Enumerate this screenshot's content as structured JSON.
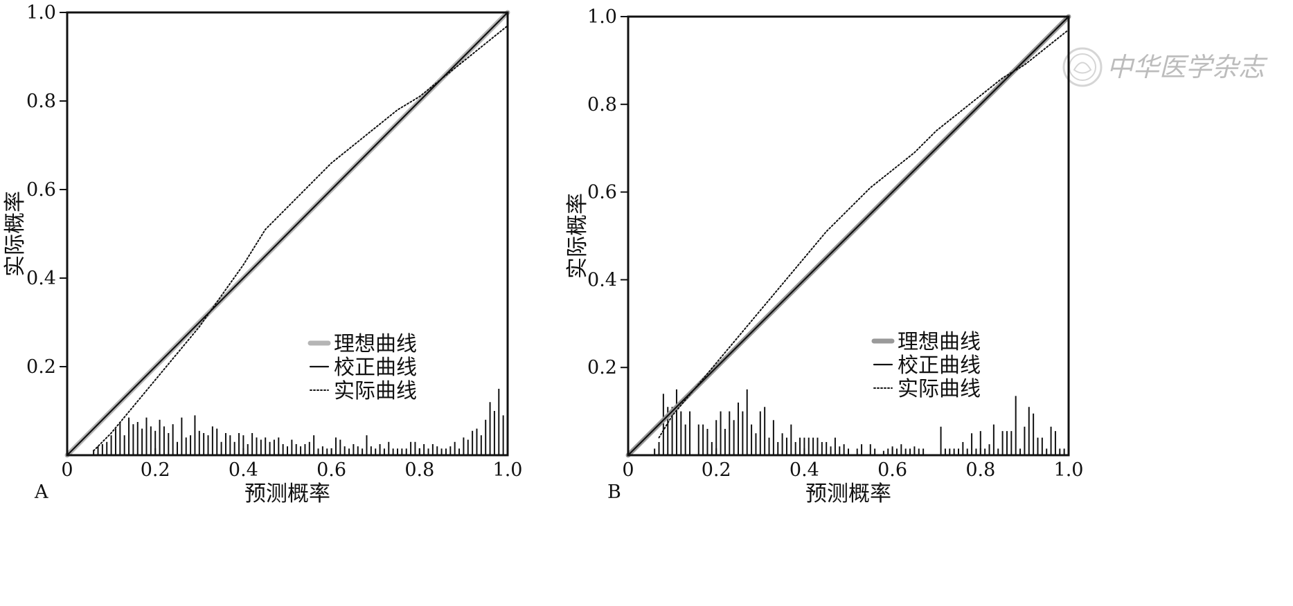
{
  "watermark": {
    "text": "中华医学杂志",
    "icon": "journal-seal-icon"
  },
  "charts": [
    {
      "type": "line",
      "panel_label": "A",
      "xlabel": "预测概率",
      "ylabel": "实际概率",
      "xlim": [
        0,
        1
      ],
      "ylim": [
        0,
        1
      ],
      "xticks": [
        "0",
        "0.2",
        "0.4",
        "0.6",
        "0.8",
        "1.0"
      ],
      "yticks": [
        "0.2",
        "0.4",
        "0.6",
        "0.8",
        "1.0"
      ],
      "legend": {
        "placement": "lower-right",
        "items": [
          "理想曲线",
          "校正曲线",
          "实际曲线"
        ]
      },
      "colors": {
        "ideal": "#b5b5b5",
        "corrected": "#111111",
        "apparent": "#111111"
      },
      "series": [
        {
          "name": "理想曲线",
          "style": "thick-gray",
          "x": [
            0,
            1
          ],
          "y": [
            0,
            1
          ]
        },
        {
          "name": "校正曲线",
          "style": "solid-black",
          "x": [
            0,
            1
          ],
          "y": [
            0,
            1
          ]
        },
        {
          "name": "实际曲线",
          "style": "dotted-black",
          "x": [
            0.06,
            0.1,
            0.15,
            0.2,
            0.25,
            0.3,
            0.35,
            0.4,
            0.45,
            0.5,
            0.55,
            0.6,
            0.65,
            0.7,
            0.75,
            0.8,
            0.85,
            0.9,
            0.95,
            1.0
          ],
          "y": [
            0.01,
            0.05,
            0.11,
            0.17,
            0.23,
            0.29,
            0.36,
            0.43,
            0.51,
            0.56,
            0.61,
            0.66,
            0.7,
            0.74,
            0.78,
            0.81,
            0.85,
            0.89,
            0.93,
            0.97
          ]
        }
      ],
      "histogram": {
        "x": [
          0.06,
          0.07,
          0.08,
          0.09,
          0.1,
          0.11,
          0.12,
          0.13,
          0.14,
          0.15,
          0.16,
          0.17,
          0.18,
          0.19,
          0.2,
          0.21,
          0.22,
          0.23,
          0.24,
          0.25,
          0.26,
          0.27,
          0.28,
          0.29,
          0.3,
          0.31,
          0.32,
          0.33,
          0.34,
          0.35,
          0.36,
          0.37,
          0.38,
          0.39,
          0.4,
          0.41,
          0.42,
          0.43,
          0.44,
          0.45,
          0.46,
          0.47,
          0.48,
          0.49,
          0.5,
          0.51,
          0.52,
          0.53,
          0.54,
          0.55,
          0.56,
          0.57,
          0.58,
          0.59,
          0.6,
          0.61,
          0.62,
          0.63,
          0.64,
          0.65,
          0.66,
          0.67,
          0.68,
          0.69,
          0.7,
          0.71,
          0.72,
          0.73,
          0.74,
          0.75,
          0.76,
          0.77,
          0.78,
          0.79,
          0.8,
          0.81,
          0.82,
          0.83,
          0.84,
          0.85,
          0.86,
          0.87,
          0.88,
          0.89,
          0.9,
          0.91,
          0.92,
          0.93,
          0.94,
          0.95,
          0.96,
          0.97,
          0.98,
          0.99
        ],
        "y": [
          0.012,
          0.02,
          0.025,
          0.03,
          0.045,
          0.06,
          0.075,
          0.045,
          0.085,
          0.07,
          0.075,
          0.06,
          0.085,
          0.065,
          0.055,
          0.08,
          0.065,
          0.05,
          0.07,
          0.03,
          0.085,
          0.04,
          0.045,
          0.09,
          0.055,
          0.05,
          0.045,
          0.065,
          0.06,
          0.03,
          0.05,
          0.045,
          0.03,
          0.05,
          0.045,
          0.025,
          0.05,
          0.04,
          0.035,
          0.04,
          0.03,
          0.035,
          0.04,
          0.025,
          0.02,
          0.035,
          0.025,
          0.02,
          0.025,
          0.03,
          0.045,
          0.015,
          0.02,
          0.015,
          0.015,
          0.04,
          0.035,
          0.02,
          0.015,
          0.025,
          0.02,
          0.015,
          0.045,
          0.02,
          0.015,
          0.025,
          0.015,
          0.03,
          0.015,
          0.015,
          0.015,
          0.015,
          0.03,
          0.03,
          0.015,
          0.025,
          0.015,
          0.025,
          0.02,
          0.015,
          0.015,
          0.02,
          0.03,
          0.015,
          0.04,
          0.035,
          0.055,
          0.06,
          0.045,
          0.08,
          0.12,
          0.1,
          0.15,
          0.09
        ]
      }
    },
    {
      "type": "line",
      "panel_label": "B",
      "xlabel": "预测概率",
      "ylabel": "实际概率",
      "xlim": [
        0,
        1
      ],
      "ylim": [
        0,
        1
      ],
      "xticks": [
        "0",
        "0.2",
        "0.4",
        "0.6",
        "0.8",
        "1.0"
      ],
      "yticks": [
        "0.2",
        "0.4",
        "0.6",
        "0.8",
        "1.0"
      ],
      "legend": {
        "placement": "lower-right",
        "items": [
          "理想曲线",
          "校正曲线",
          "实际曲线"
        ]
      },
      "colors": {
        "ideal": "#9a9a9a",
        "corrected": "#111111",
        "apparent": "#111111"
      },
      "series": [
        {
          "name": "理想曲线",
          "style": "thick-gray",
          "x": [
            0,
            1
          ],
          "y": [
            0,
            1
          ]
        },
        {
          "name": "校正曲线",
          "style": "solid-black",
          "x": [
            0,
            1
          ],
          "y": [
            0,
            1
          ]
        },
        {
          "name": "实际曲线",
          "style": "dotted-black",
          "x": [
            0.07,
            0.1,
            0.15,
            0.2,
            0.25,
            0.3,
            0.35,
            0.4,
            0.45,
            0.5,
            0.55,
            0.6,
            0.65,
            0.7,
            0.75,
            0.8,
            0.85,
            0.9,
            0.95,
            1.0
          ],
          "y": [
            0.04,
            0.09,
            0.15,
            0.21,
            0.27,
            0.33,
            0.39,
            0.45,
            0.51,
            0.56,
            0.61,
            0.65,
            0.69,
            0.74,
            0.78,
            0.82,
            0.86,
            0.89,
            0.93,
            0.97
          ]
        }
      ],
      "histogram": {
        "x": [
          0.06,
          0.07,
          0.08,
          0.09,
          0.1,
          0.11,
          0.12,
          0.13,
          0.14,
          0.16,
          0.17,
          0.18,
          0.19,
          0.2,
          0.21,
          0.22,
          0.23,
          0.24,
          0.25,
          0.26,
          0.27,
          0.28,
          0.29,
          0.3,
          0.31,
          0.32,
          0.33,
          0.34,
          0.35,
          0.36,
          0.37,
          0.38,
          0.39,
          0.4,
          0.41,
          0.42,
          0.43,
          0.44,
          0.45,
          0.46,
          0.47,
          0.48,
          0.49,
          0.5,
          0.52,
          0.53,
          0.55,
          0.56,
          0.58,
          0.59,
          0.6,
          0.61,
          0.62,
          0.63,
          0.64,
          0.65,
          0.66,
          0.67,
          0.71,
          0.72,
          0.73,
          0.74,
          0.75,
          0.76,
          0.77,
          0.78,
          0.79,
          0.8,
          0.81,
          0.82,
          0.83,
          0.84,
          0.85,
          0.86,
          0.87,
          0.88,
          0.89,
          0.9,
          0.91,
          0.92,
          0.93,
          0.94,
          0.95,
          0.96,
          0.97,
          0.98,
          0.99
        ],
        "y": [
          0.015,
          0.03,
          0.14,
          0.11,
          0.11,
          0.15,
          0.1,
          0.07,
          0.1,
          0.07,
          0.07,
          0.06,
          0.03,
          0.08,
          0.1,
          0.06,
          0.1,
          0.08,
          0.12,
          0.1,
          0.15,
          0.07,
          0.05,
          0.1,
          0.11,
          0.04,
          0.08,
          0.03,
          0.05,
          0.04,
          0.07,
          0.03,
          0.04,
          0.04,
          0.04,
          0.04,
          0.04,
          0.03,
          0.03,
          0.02,
          0.04,
          0.02,
          0.025,
          0.015,
          0.015,
          0.025,
          0.025,
          0.015,
          0.01,
          0.015,
          0.02,
          0.015,
          0.025,
          0.015,
          0.015,
          0.02,
          0.015,
          0.015,
          0.065,
          0.015,
          0.015,
          0.015,
          0.015,
          0.03,
          0.015,
          0.05,
          0.015,
          0.055,
          0.015,
          0.025,
          0.07,
          0.015,
          0.055,
          0.055,
          0.055,
          0.135,
          0.015,
          0.065,
          0.11,
          0.095,
          0.04,
          0.04,
          0.015,
          0.065,
          0.055,
          0.015,
          0.015
        ]
      }
    }
  ]
}
